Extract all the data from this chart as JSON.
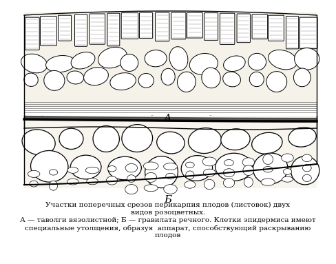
{
  "title": "",
  "background_color": "#ffffff",
  "label_a": "А",
  "label_b": "Б",
  "caption_line1": "Участки поперечных срезов перикарпия плодов (листовок) двух",
  "caption_line2": "видов розоцветных.",
  "caption_line3": "А — таволги вязолистной; Б — гравилата речного. Клетки эпидермиса имеют",
  "caption_line4": "специальные утолщения, образуя  аппарат, способствующий раскрыванию",
  "caption_line5": "плодов",
  "line_color": "#000000",
  "fill_color": "#ffffff",
  "bg_fill": "#f0ece0"
}
